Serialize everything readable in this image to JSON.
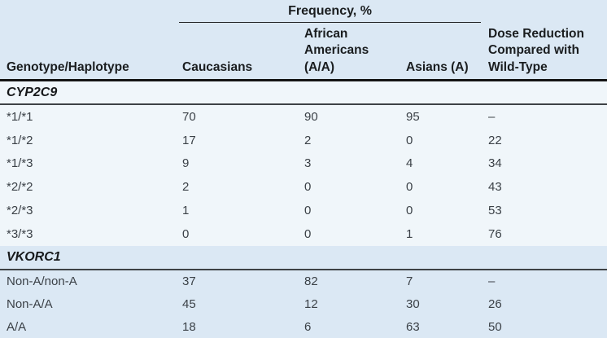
{
  "table": {
    "group_header": "Frequency, %",
    "columns": [
      "Genotype/Haplotype",
      "Caucasians",
      "African\nAmericans\n(A/A)",
      "Asians (A)",
      "Dose Reduction\nCompared with\nWild-Type"
    ],
    "sections": [
      {
        "name": "CYP2C9",
        "tint": "light",
        "rows": [
          [
            "*1/*1",
            "70",
            "90",
            "95",
            "–"
          ],
          [
            "*1/*2",
            "17",
            "2",
            "0",
            "22"
          ],
          [
            "*1/*3",
            "9",
            "3",
            "4",
            "34"
          ],
          [
            "*2/*2",
            "2",
            "0",
            "0",
            "43"
          ],
          [
            "*2/*3",
            "1",
            "0",
            "0",
            "53"
          ],
          [
            "*3/*3",
            "0",
            "0",
            "1",
            "76"
          ]
        ]
      },
      {
        "name": "VKORC1",
        "tint": "blue",
        "rows": [
          [
            "Non-A/non-A",
            "37",
            "82",
            "7",
            "–"
          ],
          [
            "Non-A/A",
            "45",
            "12",
            "30",
            "26"
          ],
          [
            "A/A",
            "18",
            "6",
            "63",
            "50"
          ]
        ]
      }
    ]
  },
  "colors": {
    "band_blue": "#dbe8f4",
    "band_light": "#f0f6fa",
    "header_rule": "#141414",
    "section_rule": "#3e4245",
    "text": "#3b4147",
    "header_text": "#1a1d1f"
  }
}
